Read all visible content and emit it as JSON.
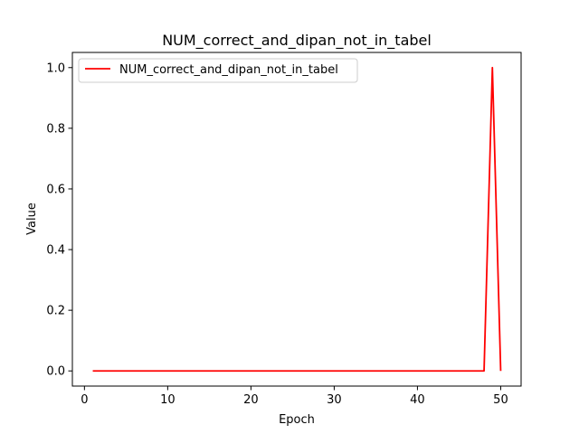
{
  "chart_data": {
    "type": "line",
    "title": "NUM_correct_and_dipan_not_in_tabel",
    "xlabel": "Epoch",
    "ylabel": "Value",
    "xlim": [
      -1.45,
      52.45
    ],
    "ylim": [
      -0.05,
      1.05
    ],
    "xticks": [
      0,
      10,
      20,
      30,
      40,
      50
    ],
    "xtick_labels": [
      "0",
      "10",
      "20",
      "30",
      "40",
      "50"
    ],
    "yticks": [
      0.0,
      0.2,
      0.4,
      0.6,
      0.8,
      1.0
    ],
    "ytick_labels": [
      "0.0",
      "0.2",
      "0.4",
      "0.6",
      "0.8",
      "1.0"
    ],
    "grid": false,
    "legend_position": "upper-left",
    "series": [
      {
        "name": "NUM_correct_and_dipan_not_in_tabel",
        "color": "#ff0000",
        "x": [
          1,
          2,
          3,
          4,
          5,
          6,
          7,
          8,
          9,
          10,
          11,
          12,
          13,
          14,
          15,
          16,
          17,
          18,
          19,
          20,
          21,
          22,
          23,
          24,
          25,
          26,
          27,
          28,
          29,
          30,
          31,
          32,
          33,
          34,
          35,
          36,
          37,
          38,
          39,
          40,
          41,
          42,
          43,
          44,
          45,
          46,
          47,
          48,
          49,
          50
        ],
        "y": [
          0,
          0,
          0,
          0,
          0,
          0,
          0,
          0,
          0,
          0,
          0,
          0,
          0,
          0,
          0,
          0,
          0,
          0,
          0,
          0,
          0,
          0,
          0,
          0,
          0,
          0,
          0,
          0,
          0,
          0,
          0,
          0,
          0,
          0,
          0,
          0,
          0,
          0,
          0,
          0,
          0,
          0,
          0,
          0,
          0,
          0,
          0,
          0,
          1,
          0
        ]
      }
    ]
  }
}
